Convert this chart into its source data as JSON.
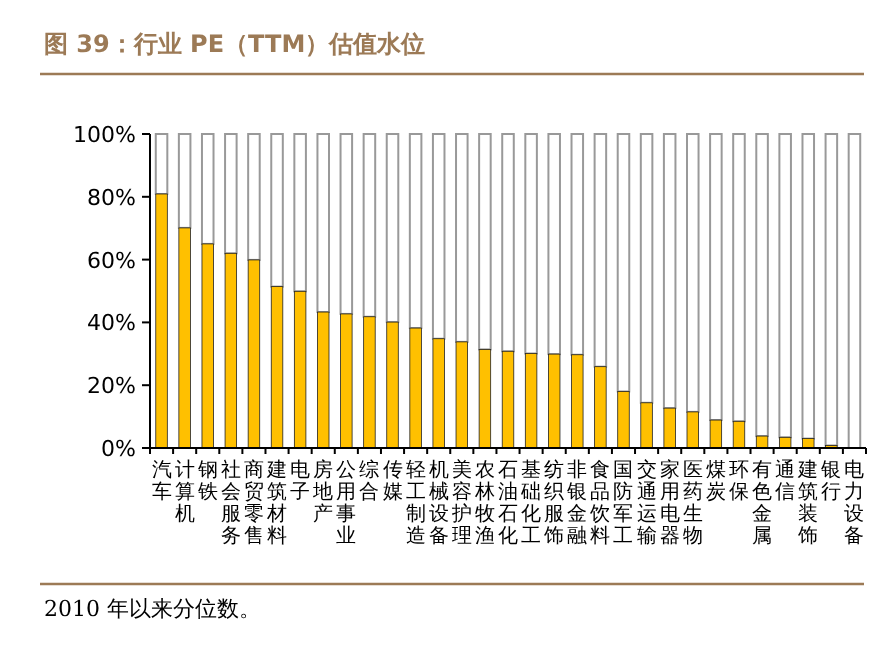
{
  "chart_data": {
    "type": "bar",
    "title": "图 39：行业 PE（TTM）估值水位",
    "annotations": [
      "2010 年以来分位数。"
    ],
    "categories": [
      "汽车",
      "计算机",
      "钢铁",
      "社会服务",
      "商贸零售",
      "建筑材料",
      "电子",
      "房地产",
      "公用事业",
      "综合",
      "传媒",
      "轻工制造",
      "机械设备",
      "美容护理",
      "农林牧渔",
      "石油石化",
      "基础化工",
      "纺织服饰",
      "非银金融",
      "食品饮料",
      "国防军工",
      "交通运输",
      "家用电器",
      "医药生物",
      "煤炭",
      "环保",
      "有色金属",
      "通信",
      "建筑装饰",
      "银行",
      "电力设备"
    ],
    "stacked": true,
    "series": [
      {
        "color": "#ffc000",
        "values": [
          80.9,
          70.1,
          65.0,
          62.0,
          59.9,
          51.4,
          49.9,
          43.3,
          42.7,
          41.8,
          40.1,
          38.2,
          34.8,
          33.8,
          31.4,
          30.8,
          30.1,
          29.9,
          29.7,
          25.9,
          18.0,
          14.4,
          12.7,
          11.5,
          8.9,
          8.5,
          3.8,
          3.4,
          3.0,
          0.8,
          0
        ]
      },
      {
        "color": "#ffffff",
        "values": [
          19.1,
          29.9,
          35.0,
          38.0,
          40.1,
          48.6,
          50.1,
          56.7,
          57.3,
          58.2,
          59.9,
          61.8,
          65.2,
          66.2,
          68.6,
          69.2,
          69.9,
          70.1,
          70.3,
          74.1,
          82.0,
          85.6,
          87.3,
          88.5,
          91.1,
          91.5,
          96.2,
          96.6,
          97.0,
          99.2,
          100
        ]
      }
    ],
    "ylim": [
      0,
      100
    ],
    "yticks": [
      {
        "value": 0,
        "label": "0%"
      },
      {
        "value": 20,
        "label": "20%"
      },
      {
        "value": 40,
        "label": "40%"
      },
      {
        "value": 60,
        "label": "60%"
      },
      {
        "value": 80,
        "label": "80%"
      },
      {
        "value": 100,
        "label": "100%"
      }
    ]
  }
}
